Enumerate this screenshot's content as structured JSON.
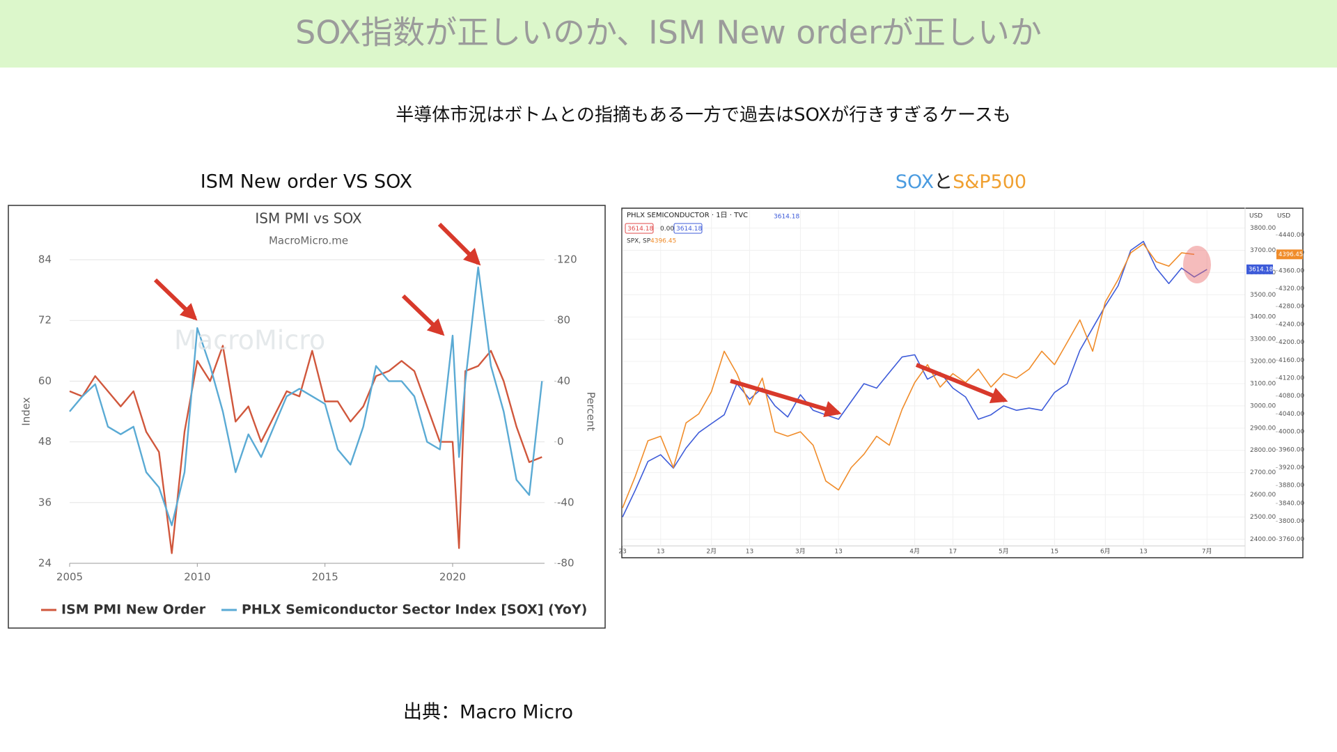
{
  "header": {
    "title": "SOX指数が正しいのか、ISM New orderが正しいか"
  },
  "subtitle": "半導体市況はボトムとの指摘もある一方で過去はSOXが行きすぎるケースも",
  "left_panel": {
    "title": "ISM New order VS SOX"
  },
  "right_panel": {
    "title_parts": [
      "SOX",
      "と",
      "S&P500"
    ],
    "title_colors": [
      "#4a9be0",
      "#222222",
      "#f0a030"
    ]
  },
  "source": "出典：Macro Micro",
  "chart_data": [
    {
      "type": "line",
      "title": "ISM PMI vs SOX",
      "subtitle": "MacroMicro.me",
      "watermark": "MacroMicro",
      "y_label": "Index",
      "y2_label": "Percent",
      "x": [
        2005,
        2005.5,
        2006,
        2006.5,
        2007,
        2007.5,
        2008,
        2008.5,
        2009,
        2009.5,
        2010,
        2010.5,
        2011,
        2011.5,
        2012,
        2012.5,
        2013,
        2013.5,
        2014,
        2014.5,
        2015,
        2015.5,
        2016,
        2016.5,
        2017,
        2017.5,
        2018,
        2018.5,
        2019,
        2019.5,
        2020,
        2020.25,
        2020.5,
        2021,
        2021.5,
        2022,
        2022.5,
        2023,
        2023.5
      ],
      "xlim": [
        2005,
        2023.6
      ],
      "xticks": [
        2005,
        2010,
        2015,
        2020
      ],
      "ylim": [
        24,
        84
      ],
      "yticks": [
        24,
        36,
        48,
        60,
        72,
        84
      ],
      "y2lim": [
        -80,
        120
      ],
      "y2ticks": [
        -80,
        -40,
        0,
        40,
        80,
        120
      ],
      "grid": true,
      "legend": "bottom",
      "series": [
        {
          "name": "ISM PMI New Order",
          "color": "#d0573c",
          "values": [
            58,
            57,
            61,
            58,
            55,
            58,
            50,
            46,
            26,
            50,
            64,
            60,
            67,
            52,
            55,
            48,
            53,
            58,
            57,
            66,
            56,
            56,
            52,
            55,
            61,
            62,
            64,
            62,
            55,
            48,
            48,
            27,
            62,
            63,
            66,
            60,
            51,
            44,
            45
          ]
        },
        {
          "name": "PHLX Semiconductor Sector Index [SOX] (YoY)",
          "color": "#5aaad4",
          "axis": "y2",
          "values": [
            20,
            30,
            38,
            10,
            5,
            10,
            -20,
            -30,
            -55,
            -20,
            75,
            50,
            20,
            -20,
            5,
            -10,
            10,
            30,
            35,
            30,
            25,
            -5,
            -15,
            10,
            50,
            40,
            40,
            30,
            0,
            -5,
            70,
            -10,
            40,
            115,
            50,
            20,
            -25,
            -35,
            40
          ]
        }
      ]
    },
    {
      "type": "line",
      "info": [
        "3614.18",
        "0.00",
        "3614.18"
      ],
      "currency": "USD",
      "categories": [
        "23",
        null,
        null,
        "13",
        null,
        null,
        null,
        "2月",
        null,
        null,
        "13",
        null,
        null,
        null,
        "3月",
        null,
        null,
        "13",
        null,
        null,
        null,
        null,
        null,
        "4月",
        null,
        null,
        "17",
        null,
        null,
        null,
        "5月",
        null,
        null,
        null,
        "15",
        null,
        null,
        null,
        "6月",
        null,
        null,
        "13",
        null,
        null,
        null,
        null,
        "7月",
        null,
        null,
        null
      ],
      "ylim": [
        2370,
        3880
      ],
      "yticks": [
        {
          "value": 2400,
          "label": "2400.00"
        },
        {
          "value": 2500,
          "label": "2500.00"
        },
        {
          "value": 2600,
          "label": "2600.00"
        },
        {
          "value": 2700,
          "label": "2700.00"
        },
        {
          "value": 2800,
          "label": "2800.00"
        },
        {
          "value": 2900,
          "label": "2900.00"
        },
        {
          "value": 3000,
          "label": "3000.00"
        },
        {
          "value": 3100,
          "label": "3100.00"
        },
        {
          "value": 3200,
          "label": "3200.00"
        },
        {
          "value": 3300,
          "label": "3300.00"
        },
        {
          "value": 3400,
          "label": "3400.00"
        },
        {
          "value": 3500,
          "label": "3500.00"
        },
        {
          "value": 3600,
          "label": "3600.00"
        },
        {
          "value": 3700,
          "label": "3700.00"
        },
        {
          "value": 3800,
          "label": "3800.00"
        }
      ],
      "y2lim": [
        3745,
        4495
      ],
      "y2ticks": [
        {
          "value": 3760,
          "label": "3760.00"
        },
        {
          "value": 3800,
          "label": "3800.00"
        },
        {
          "value": 3840,
          "label": "3840.00"
        },
        {
          "value": 3880,
          "label": "3880.00"
        },
        {
          "value": 3920,
          "label": "3920.00"
        },
        {
          "value": 3960,
          "label": "3960.00"
        },
        {
          "value": 4000,
          "label": "4000.00"
        },
        {
          "value": 4040,
          "label": "4040.00"
        },
        {
          "value": 4080,
          "label": "4080.00"
        },
        {
          "value": 4120,
          "label": "4120.00"
        },
        {
          "value": 4160,
          "label": "4160.00"
        },
        {
          "value": 4200,
          "label": "4200.00"
        },
        {
          "value": 4240,
          "label": "4240.00"
        },
        {
          "value": 4280,
          "label": "4280.00"
        },
        {
          "value": 4320,
          "label": "4320.00"
        },
        {
          "value": 4360,
          "label": "4360.00"
        },
        {
          "value": 4400,
          "label": "4400.00"
        },
        {
          "value": 4440,
          "label": "4440.00"
        }
      ],
      "grid": true,
      "series": [
        {
          "name": "PHLX SEMICONDUCTOR · 1日 · TVC",
          "color": "#3d5bd9",
          "last_label": "3614.18",
          "values": [
            2500,
            2620,
            2750,
            2780,
            2720,
            2810,
            2880,
            2920,
            2960,
            3100,
            3030,
            3080,
            3000,
            2950,
            3050,
            2980,
            2960,
            2940,
            3020,
            3100,
            3080,
            3150,
            3220,
            3230,
            3120,
            3150,
            3080,
            3040,
            2940,
            2960,
            3000,
            2980,
            2990,
            2980,
            3060,
            3100,
            3250,
            3350,
            3450,
            3540,
            3700,
            3740,
            3620,
            3550,
            3620,
            3580,
            3614.18,
            null,
            null,
            null
          ]
        },
        {
          "name": "SPX, SP",
          "color": "#f08c2a",
          "axis": "y2",
          "last_label": "4396.45",
          "values": [
            3830,
            3900,
            3980,
            3990,
            3920,
            4020,
            4040,
            4090,
            4180,
            4130,
            4060,
            4120,
            4000,
            3990,
            4000,
            3970,
            3890,
            3870,
            3920,
            3950,
            3990,
            3970,
            4050,
            4110,
            4150,
            4100,
            4130,
            4110,
            4140,
            4100,
            4130,
            4120,
            4140,
            4180,
            4150,
            4200,
            4250,
            4180,
            4290,
            4340,
            4400,
            4420,
            4380,
            4370,
            4400,
            4396.45,
            null,
            null,
            null,
            null
          ]
        }
      ]
    }
  ]
}
